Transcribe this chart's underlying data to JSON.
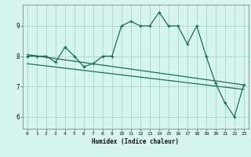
{
  "title": "",
  "xlabel": "Humidex (Indice chaleur)",
  "bg_color": "#d6f5ef",
  "line_color": "#1a6b5e",
  "grid_color": "#aed8d0",
  "xlim": [
    -0.5,
    23.5
  ],
  "ylim": [
    5.6,
    9.7
  ],
  "xticks": [
    0,
    1,
    2,
    3,
    4,
    5,
    6,
    7,
    8,
    9,
    10,
    11,
    12,
    13,
    14,
    15,
    16,
    17,
    18,
    19,
    20,
    21,
    22,
    23
  ],
  "yticks": [
    6,
    7,
    8,
    9
  ],
  "data_x": [
    0,
    1,
    2,
    3,
    4,
    5,
    6,
    7,
    8,
    9,
    10,
    11,
    12,
    13,
    14,
    15,
    16,
    17,
    18,
    19,
    20,
    21,
    22,
    23
  ],
  "data_y": [
    8.0,
    8.0,
    8.0,
    7.8,
    8.3,
    8.0,
    7.65,
    7.75,
    8.0,
    8.0,
    9.0,
    9.15,
    9.0,
    9.0,
    9.45,
    9.0,
    9.0,
    8.4,
    9.0,
    8.0,
    7.1,
    6.45,
    6.0,
    7.05
  ],
  "trend1_x": [
    0,
    23
  ],
  "trend1_y": [
    8.05,
    7.05
  ],
  "trend2_x": [
    0,
    23
  ],
  "trend2_y": [
    7.75,
    6.9
  ]
}
